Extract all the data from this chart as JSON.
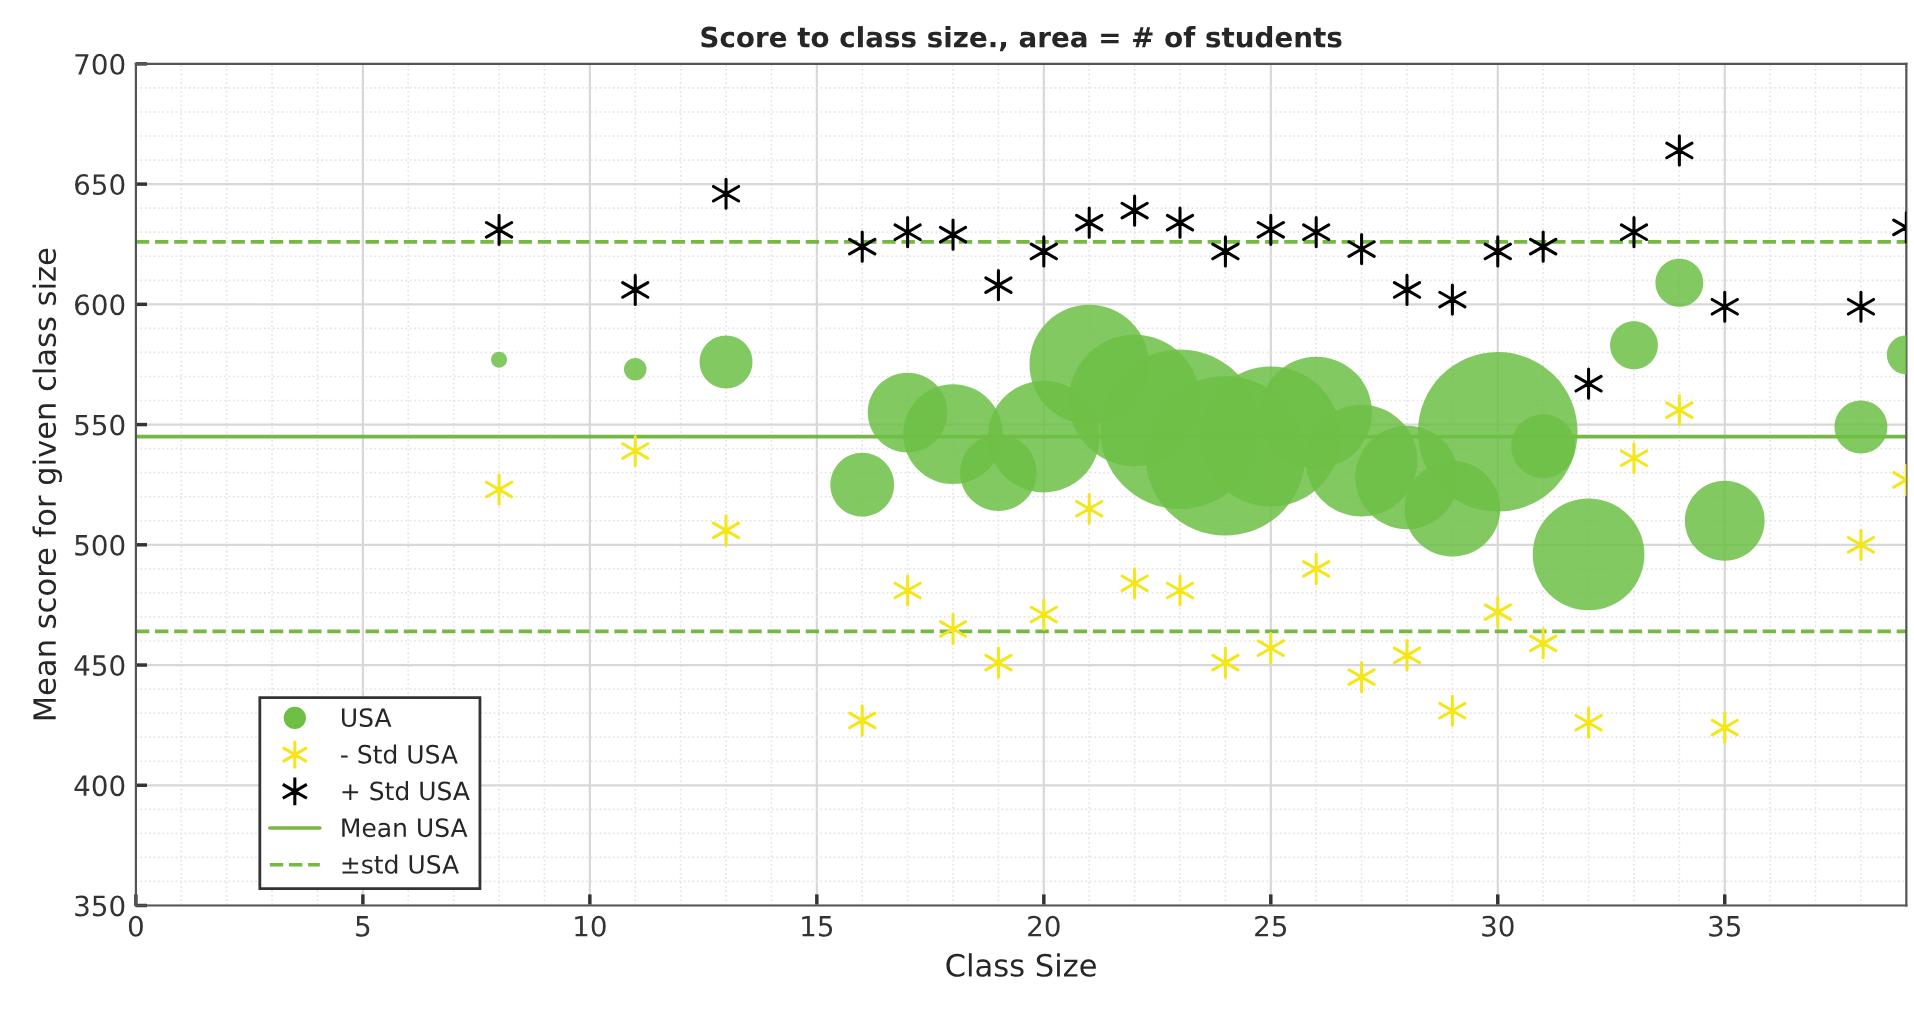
{
  "chart_data": {
    "type": "scatter",
    "title": "Score to class size., area = # of students",
    "xlabel": "Class Size",
    "ylabel": "Mean score for given class size",
    "x": [
      8,
      11,
      13,
      16,
      17,
      18,
      19,
      20,
      21,
      22,
      23,
      24,
      25,
      26,
      27,
      28,
      29,
      30,
      31,
      32,
      33,
      34,
      35,
      38,
      39
    ],
    "series": [
      {
        "name": "USA",
        "type": "bubble",
        "color": "#6dbf45",
        "marker": "circle",
        "values": [
          577,
          573,
          576,
          525,
          555,
          546,
          530,
          545,
          575,
          560,
          548,
          537,
          545,
          555,
          535,
          528,
          515,
          547,
          541,
          496,
          583,
          609,
          510,
          549,
          579
        ],
        "sizes": [
          0.01,
          0.02,
          0.11,
          0.16,
          0.25,
          0.39,
          0.23,
          0.49,
          0.56,
          0.68,
          1,
          1,
          0.77,
          0.49,
          0.49,
          0.42,
          0.36,
          1,
          0.16,
          0.49,
          0.09,
          0.09,
          0.25,
          0.11,
          0.06
        ]
      },
      {
        "name": "- Std USA",
        "color": "#f5e61a",
        "marker": "cross",
        "values": [
          523,
          539,
          506,
          427,
          481,
          465,
          451,
          471,
          515,
          484,
          481,
          451,
          457,
          490,
          445,
          454,
          431,
          472,
          459,
          426,
          536,
          556,
          424,
          500,
          527
        ]
      },
      {
        "name": "+ Std USA",
        "color": "#000000",
        "marker": "cross",
        "values": [
          631,
          606,
          646,
          624,
          630,
          629,
          608,
          622,
          634,
          639,
          634,
          622,
          631,
          630,
          623,
          606,
          602,
          622,
          624,
          567,
          630,
          664,
          599,
          599,
          632
        ]
      }
    ],
    "ref_lines": [
      {
        "axis": "y",
        "value": 545,
        "label": "Mean USA",
        "color": "#77b843",
        "line_style": "solid"
      },
      {
        "axis": "y",
        "value": 626,
        "label": "±std USA",
        "color": "#77b843",
        "line_style": "dashed"
      },
      {
        "axis": "y",
        "value": 464,
        "color": "#77b843",
        "line_style": "dashed"
      }
    ],
    "xlim": [
      0,
      39
    ],
    "xticks": [
      0,
      5,
      10,
      15,
      20,
      25,
      30,
      35
    ],
    "ylim": [
      350,
      700
    ],
    "yticks": [
      350,
      400,
      450,
      500,
      550,
      600,
      650,
      700
    ],
    "grid": true,
    "legend": "bottom left"
  }
}
